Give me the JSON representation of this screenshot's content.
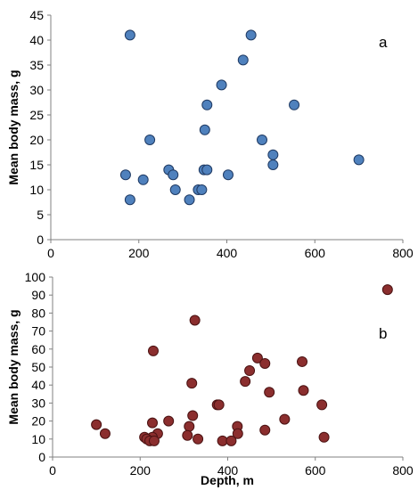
{
  "chart_data": [
    {
      "type": "scatter",
      "panel_label": "a",
      "xlabel": "",
      "ylabel": "Mean body mass, g",
      "xlim": [
        0,
        800
      ],
      "ylim": [
        0,
        45
      ],
      "xticks": [
        0,
        200,
        400,
        600,
        800
      ],
      "yticks": [
        0,
        5,
        10,
        15,
        20,
        25,
        30,
        35,
        40,
        45
      ],
      "marker_color": "#4F81BD",
      "marker_edge_color": "#1F3A63",
      "grid": false,
      "points": [
        {
          "x": 180,
          "y": 41
        },
        {
          "x": 455,
          "y": 41
        },
        {
          "x": 437,
          "y": 36
        },
        {
          "x": 388,
          "y": 31
        },
        {
          "x": 355,
          "y": 27
        },
        {
          "x": 553,
          "y": 27
        },
        {
          "x": 350,
          "y": 22
        },
        {
          "x": 225,
          "y": 20
        },
        {
          "x": 480,
          "y": 20
        },
        {
          "x": 505,
          "y": 17
        },
        {
          "x": 700,
          "y": 16
        },
        {
          "x": 505,
          "y": 15
        },
        {
          "x": 268,
          "y": 14
        },
        {
          "x": 348,
          "y": 14
        },
        {
          "x": 355,
          "y": 14
        },
        {
          "x": 170,
          "y": 13
        },
        {
          "x": 278,
          "y": 13
        },
        {
          "x": 403,
          "y": 13
        },
        {
          "x": 210,
          "y": 12
        },
        {
          "x": 283,
          "y": 10
        },
        {
          "x": 335,
          "y": 10
        },
        {
          "x": 343,
          "y": 10
        },
        {
          "x": 180,
          "y": 8
        },
        {
          "x": 315,
          "y": 8
        }
      ]
    },
    {
      "type": "scatter",
      "panel_label": "b",
      "xlabel": "Depth, m",
      "ylabel": "Mean body mass, g",
      "xlim": [
        0,
        800
      ],
      "ylim": [
        0,
        100
      ],
      "xticks": [
        0,
        200,
        400,
        600,
        800
      ],
      "yticks": [
        0,
        10,
        20,
        30,
        40,
        50,
        60,
        70,
        80,
        90,
        100
      ],
      "marker_color": "#8B2E2E",
      "marker_edge_color": "#4A1212",
      "grid": false,
      "points": [
        {
          "x": 765,
          "y": 93
        },
        {
          "x": 325,
          "y": 76
        },
        {
          "x": 230,
          "y": 59
        },
        {
          "x": 468,
          "y": 55
        },
        {
          "x": 570,
          "y": 53
        },
        {
          "x": 485,
          "y": 52
        },
        {
          "x": 450,
          "y": 48
        },
        {
          "x": 440,
          "y": 42
        },
        {
          "x": 318,
          "y": 41
        },
        {
          "x": 573,
          "y": 37
        },
        {
          "x": 495,
          "y": 36
        },
        {
          "x": 376,
          "y": 29
        },
        {
          "x": 380,
          "y": 29
        },
        {
          "x": 615,
          "y": 29
        },
        {
          "x": 320,
          "y": 23
        },
        {
          "x": 530,
          "y": 21
        },
        {
          "x": 265,
          "y": 20
        },
        {
          "x": 228,
          "y": 19
        },
        {
          "x": 100,
          "y": 18
        },
        {
          "x": 312,
          "y": 17
        },
        {
          "x": 422,
          "y": 17
        },
        {
          "x": 485,
          "y": 15
        },
        {
          "x": 120,
          "y": 13
        },
        {
          "x": 240,
          "y": 13
        },
        {
          "x": 423,
          "y": 13
        },
        {
          "x": 308,
          "y": 12
        },
        {
          "x": 228,
          "y": 11
        },
        {
          "x": 210,
          "y": 11
        },
        {
          "x": 620,
          "y": 11
        },
        {
          "x": 215,
          "y": 10
        },
        {
          "x": 222,
          "y": 9
        },
        {
          "x": 232,
          "y": 9
        },
        {
          "x": 332,
          "y": 10
        },
        {
          "x": 388,
          "y": 9
        },
        {
          "x": 408,
          "y": 9
        }
      ]
    }
  ]
}
